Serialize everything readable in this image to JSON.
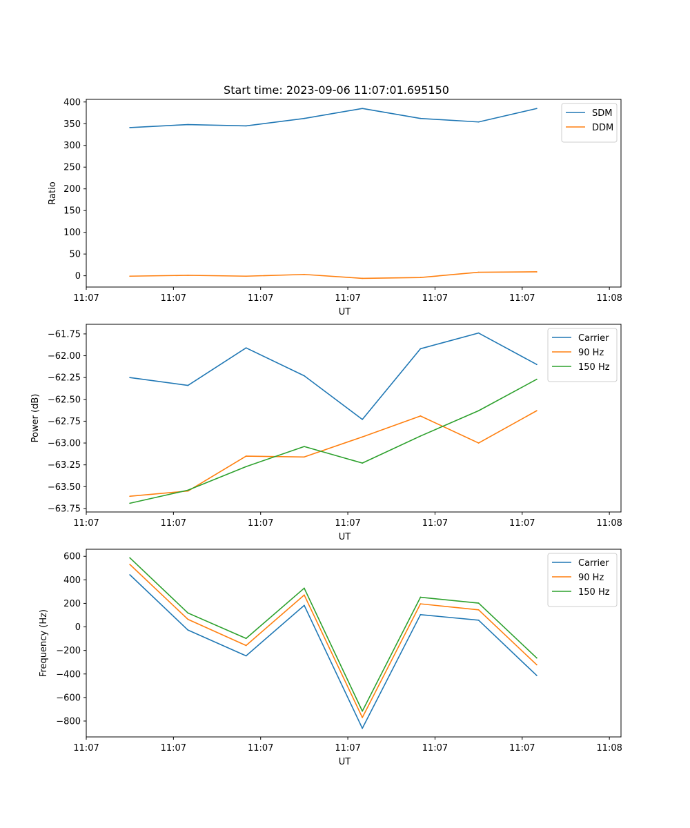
{
  "chart_data": [
    {
      "type": "line",
      "title": "Start time: 2023-09-06 11:07:01.695150",
      "xlabel": "UT",
      "ylabel": "Ratio",
      "xlim": [
        0,
        9.2
      ],
      "ylim": [
        -26,
        406
      ],
      "x": [
        0.75,
        1.75,
        2.75,
        3.75,
        4.75,
        5.75,
        6.75,
        7.75
      ],
      "x_ticks": [
        0.0,
        1.5,
        3.0,
        4.5,
        6.0,
        7.5,
        9.0
      ],
      "x_tick_labels": [
        "11:07",
        "11:07",
        "11:07",
        "11:07",
        "11:07",
        "11:07",
        "11:08"
      ],
      "y_ticks": [
        0,
        50,
        100,
        150,
        200,
        250,
        300,
        350,
        400
      ],
      "y_tick_labels": [
        "0",
        "50",
        "100",
        "150",
        "200",
        "250",
        "300",
        "350",
        "400"
      ],
      "legend_position": "top-right",
      "series": [
        {
          "name": "SDM",
          "color": "#1f77b4",
          "values": [
            341,
            348,
            345,
            362,
            385,
            362,
            354,
            385
          ]
        },
        {
          "name": "DDM",
          "color": "#ff7f0e",
          "values": [
            -1,
            1,
            -1,
            3,
            -6,
            -4,
            8,
            9
          ]
        }
      ]
    },
    {
      "type": "line",
      "title": "",
      "xlabel": "UT",
      "ylabel": "Power (dB)",
      "xlim": [
        0,
        9.2
      ],
      "ylim": [
        -63.79,
        -61.64
      ],
      "x": [
        0.75,
        1.75,
        2.75,
        3.75,
        4.75,
        5.75,
        6.75,
        7.75
      ],
      "x_ticks": [
        0.0,
        1.5,
        3.0,
        4.5,
        6.0,
        7.5,
        9.0
      ],
      "x_tick_labels": [
        "11:07",
        "11:07",
        "11:07",
        "11:07",
        "11:07",
        "11:07",
        "11:08"
      ],
      "y_ticks": [
        -63.75,
        -63.5,
        -63.25,
        -63.0,
        -62.75,
        -62.5,
        -62.25,
        -62.0,
        -61.75
      ],
      "y_tick_labels": [
        "−63.75",
        "−63.50",
        "−63.25",
        "−63.00",
        "−62.75",
        "−62.50",
        "−62.25",
        "−62.00",
        "−61.75"
      ],
      "legend_position": "top-right",
      "series": [
        {
          "name": "Carrier",
          "color": "#1f77b4",
          "values": [
            -62.25,
            -62.34,
            -61.91,
            -62.23,
            -62.73,
            -61.92,
            -61.74,
            -62.1
          ]
        },
        {
          "name": "90 Hz",
          "color": "#ff7f0e",
          "values": [
            -63.61,
            -63.55,
            -63.15,
            -63.16,
            -62.93,
            -62.69,
            -63.0,
            -62.63
          ]
        },
        {
          "name": "150 Hz",
          "color": "#2ca02c",
          "values": [
            -63.69,
            -63.54,
            -63.27,
            -63.04,
            -63.23,
            -62.92,
            -62.63,
            -62.27
          ]
        }
      ]
    },
    {
      "type": "line",
      "title": "",
      "xlabel": "UT",
      "ylabel": "Frequency (Hz)",
      "xlim": [
        0,
        9.2
      ],
      "ylim": [
        -935,
        660
      ],
      "x": [
        0.75,
        1.75,
        2.75,
        3.75,
        4.75,
        5.75,
        6.75,
        7.75
      ],
      "x_ticks": [
        0.0,
        1.5,
        3.0,
        4.5,
        6.0,
        7.5,
        9.0
      ],
      "x_tick_labels": [
        "11:07",
        "11:07",
        "11:07",
        "11:07",
        "11:07",
        "11:07",
        "11:08"
      ],
      "y_ticks": [
        -800,
        -600,
        -400,
        -200,
        0,
        200,
        400,
        600
      ],
      "y_tick_labels": [
        "−800",
        "−600",
        "−400",
        "−200",
        "0",
        "200",
        "400",
        "600"
      ],
      "legend_position": "top-right",
      "series": [
        {
          "name": "Carrier",
          "color": "#1f77b4",
          "values": [
            443,
            -27,
            -246,
            183,
            -862,
            104,
            57,
            -413
          ]
        },
        {
          "name": "90 Hz",
          "color": "#ff7f0e",
          "values": [
            531,
            64,
            -158,
            271,
            -770,
            196,
            145,
            -322
          ]
        },
        {
          "name": "150 Hz",
          "color": "#2ca02c",
          "values": [
            587,
            118,
            -98,
            329,
            -716,
            252,
            202,
            -264
          ]
        }
      ]
    }
  ]
}
